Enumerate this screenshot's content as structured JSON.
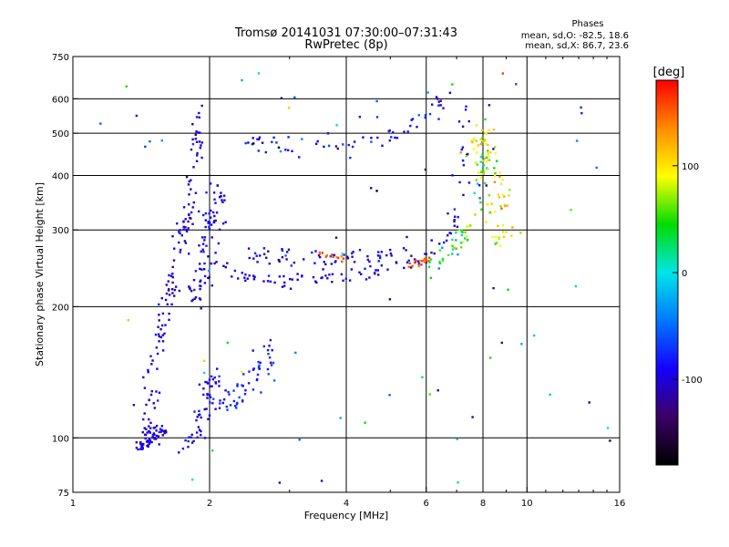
{
  "chart_data": {
    "type": "scatter",
    "title": "Tromsø 20141031 07:30:00–07:31:43",
    "subtitle": "RwPretec (8p)",
    "xlabel": "Frequency [MHz]",
    "ylabel": "Stationary phase Virtual Height [km]",
    "x_scale": "log2",
    "y_scale": "log",
    "xlim": [
      1,
      16
    ],
    "ylim": [
      75,
      750
    ],
    "xticks": [
      1,
      2,
      4,
      6,
      8,
      10,
      16
    ],
    "xtick_labels": [
      "1",
      "2",
      "4",
      "6",
      "8",
      "10",
      "16"
    ],
    "yticks": [
      75,
      100,
      200,
      300,
      400,
      500,
      600,
      750
    ],
    "ytick_labels": [
      "75",
      "100",
      "200",
      "300",
      "400",
      "500",
      "600",
      "750"
    ],
    "grid": true,
    "stats": {
      "title": "Phases",
      "line_o": "mean, sd,O: -82.5, 18.6",
      "line_x": "mean, sd,X: 86.7, 23.6"
    },
    "colorbar": {
      "label": "[deg]",
      "range": [
        -180,
        180
      ],
      "ticks": [
        100,
        0,
        -100
      ],
      "tick_labels": [
        "100",
        "0",
        "-100"
      ],
      "colormap": [
        "#000000",
        "#3c0064",
        "#1400ff",
        "#0078ff",
        "#00e6e6",
        "#00dc00",
        "#ffff00",
        "#ff8c00",
        "#ff0000"
      ]
    },
    "series": [
      {
        "type": "band",
        "n": 140,
        "phase": -100,
        "phase_sd": 12,
        "spread": 0.03,
        "points": [
          [
            1.45,
            100
          ],
          [
            1.5,
            150
          ],
          [
            1.6,
            200
          ],
          [
            1.7,
            260
          ],
          [
            1.8,
            330
          ],
          [
            1.85,
            420
          ],
          [
            1.9,
            560
          ]
        ]
      },
      {
        "type": "band",
        "n": 80,
        "phase": -95,
        "phase_sd": 12,
        "spread": 0.04,
        "points": [
          [
            1.85,
            200
          ],
          [
            1.95,
            260
          ],
          [
            2.05,
            320
          ],
          [
            2.1,
            380
          ]
        ]
      },
      {
        "type": "band",
        "n": 60,
        "phase": -100,
        "phase_sd": 12,
        "spread": 0.025,
        "points": [
          [
            1.4,
            95
          ],
          [
            1.5,
            100
          ],
          [
            1.6,
            105
          ]
        ]
      },
      {
        "type": "band",
        "n": 50,
        "phase": -95,
        "phase_sd": 12,
        "spread": 0.03,
        "points": [
          [
            1.75,
            95
          ],
          [
            1.85,
            100
          ],
          [
            1.95,
            120
          ],
          [
            2.05,
            140
          ]
        ]
      },
      {
        "type": "band",
        "n": 60,
        "phase": -80,
        "phase_sd": 15,
        "spread": 0.045,
        "points": [
          [
            2.0,
            115
          ],
          [
            2.2,
            120
          ],
          [
            2.4,
            130
          ],
          [
            2.6,
            145
          ],
          [
            2.7,
            160
          ]
        ]
      },
      {
        "type": "band",
        "n": 110,
        "phase": -100,
        "phase_sd": 12,
        "spread": 0.025,
        "points": [
          [
            1.95,
            270
          ],
          [
            2.2,
            240
          ],
          [
            2.5,
            230
          ],
          [
            3.0,
            228
          ],
          [
            3.5,
            232
          ],
          [
            4.0,
            236
          ],
          [
            4.5,
            240
          ],
          [
            5.0,
            245
          ],
          [
            5.5,
            252
          ],
          [
            6.0,
            262
          ],
          [
            6.5,
            280
          ],
          [
            7.0,
            330
          ],
          [
            7.2,
            400
          ],
          [
            7.3,
            500
          ],
          [
            7.35,
            600
          ]
        ]
      },
      {
        "type": "band",
        "n": 60,
        "phase": -95,
        "phase_sd": 15,
        "spread": 0.03,
        "points": [
          [
            2.4,
            262
          ],
          [
            3.0,
            260
          ],
          [
            3.5,
            258
          ],
          [
            4.0,
            262
          ],
          [
            4.5,
            262
          ],
          [
            5.0,
            268
          ],
          [
            5.5,
            272
          ]
        ]
      },
      {
        "type": "band",
        "n": 20,
        "phase": 150,
        "phase_sd": 10,
        "spread": 0.012,
        "points": [
          [
            5.5,
            248
          ],
          [
            5.8,
            250
          ],
          [
            6.1,
            262
          ]
        ]
      },
      {
        "type": "band",
        "n": 12,
        "phase": 150,
        "phase_sd": 10,
        "spread": 0.012,
        "points": [
          [
            3.5,
            262
          ],
          [
            3.9,
            258
          ]
        ]
      },
      {
        "type": "band",
        "n": 60,
        "phase": 40,
        "phase_sd": 40,
        "spread": 0.025,
        "points": [
          [
            6.2,
            250
          ],
          [
            6.8,
            270
          ],
          [
            7.4,
            300
          ],
          [
            7.8,
            360
          ],
          [
            8.0,
            420
          ],
          [
            8.1,
            500
          ]
        ]
      },
      {
        "type": "band",
        "n": 60,
        "phase": -85,
        "phase_sd": 15,
        "spread": 0.035,
        "points": [
          [
            2.4,
            480
          ],
          [
            3.0,
            470
          ],
          [
            3.5,
            465
          ],
          [
            4.0,
            468
          ],
          [
            4.6,
            480
          ],
          [
            5.2,
            500
          ],
          [
            5.8,
            540
          ],
          [
            6.3,
            580
          ],
          [
            6.7,
            620
          ]
        ]
      },
      {
        "type": "band",
        "n": 50,
        "phase": 95,
        "phase_sd": 20,
        "spread": 0.04,
        "points": [
          [
            7.8,
            520
          ],
          [
            8.2,
            460
          ],
          [
            8.6,
            420
          ],
          [
            8.8,
            360
          ],
          [
            8.9,
            300
          ],
          [
            9.0,
            260
          ]
        ]
      },
      {
        "type": "band",
        "n": 35,
        "phase": 90,
        "phase_sd": 25,
        "spread": 0.04,
        "points": [
          [
            7.6,
            480
          ],
          [
            8.0,
            420
          ],
          [
            8.3,
            350
          ],
          [
            8.5,
            280
          ]
        ]
      },
      {
        "type": "scatter",
        "n": 80,
        "phase": -40,
        "phase_sd": 90,
        "xlim": [
          1.1,
          15.5
        ],
        "ylim": [
          78,
          700
        ]
      }
    ]
  }
}
